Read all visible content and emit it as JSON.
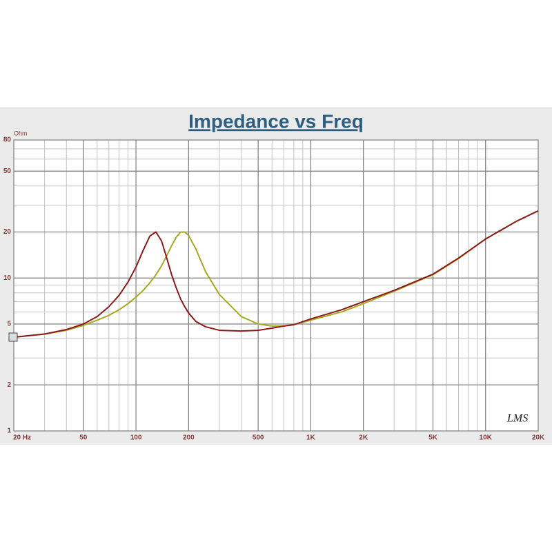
{
  "chart_data": {
    "type": "line",
    "title": "Impedance vs Freq",
    "y_label": "Ohm",
    "annotation": "LMS",
    "x": [
      20,
      30,
      40,
      50,
      60,
      70,
      80,
      90,
      100,
      110,
      120,
      130,
      140,
      150,
      160,
      170,
      180,
      190,
      200,
      220,
      250,
      300,
      400,
      500,
      600,
      700,
      800,
      1000,
      1500,
      2000,
      3000,
      5000,
      7000,
      10000,
      15000,
      20000
    ],
    "series": [
      {
        "color": "#8b1a1a",
        "values": [
          4.1,
          4.3,
          4.6,
          5.0,
          5.6,
          6.5,
          7.7,
          9.4,
          11.8,
          15.2,
          18.8,
          20,
          17.5,
          13.5,
          10.5,
          8.6,
          7.3,
          6.5,
          5.9,
          5.2,
          4.8,
          4.55,
          4.5,
          4.55,
          4.7,
          4.85,
          4.95,
          5.4,
          6.2,
          7.0,
          8.3,
          10.6,
          13.5,
          18,
          23.5,
          27.5
        ]
      },
      {
        "color": "#a8a820",
        "values": [
          4.1,
          4.3,
          4.55,
          4.9,
          5.3,
          5.7,
          6.2,
          6.8,
          7.5,
          8.3,
          9.3,
          10.5,
          12,
          14,
          16.3,
          18.5,
          20,
          20,
          19,
          15.5,
          11,
          7.8,
          5.6,
          5.0,
          4.85,
          4.85,
          4.95,
          5.3,
          6.0,
          6.8,
          8.2,
          10.5,
          13.4,
          18,
          23.5,
          27.5
        ]
      }
    ],
    "xlim": [
      20,
      20000
    ],
    "ylim": [
      1,
      80
    ],
    "log_x": true,
    "log_y": true,
    "grid": true,
    "minor_grid": true,
    "xticks": [
      {
        "value": 20,
        "label": "20 Hz"
      },
      50,
      100,
      200,
      500,
      {
        "value": 1000,
        "label": "1K"
      },
      {
        "value": 2000,
        "label": "2K"
      },
      {
        "value": 5000,
        "label": "5K"
      },
      {
        "value": 10000,
        "label": "10K"
      },
      {
        "value": 20000,
        "label": "20K"
      }
    ],
    "yticks": [
      1,
      2,
      5,
      10,
      20,
      50,
      80
    ]
  }
}
